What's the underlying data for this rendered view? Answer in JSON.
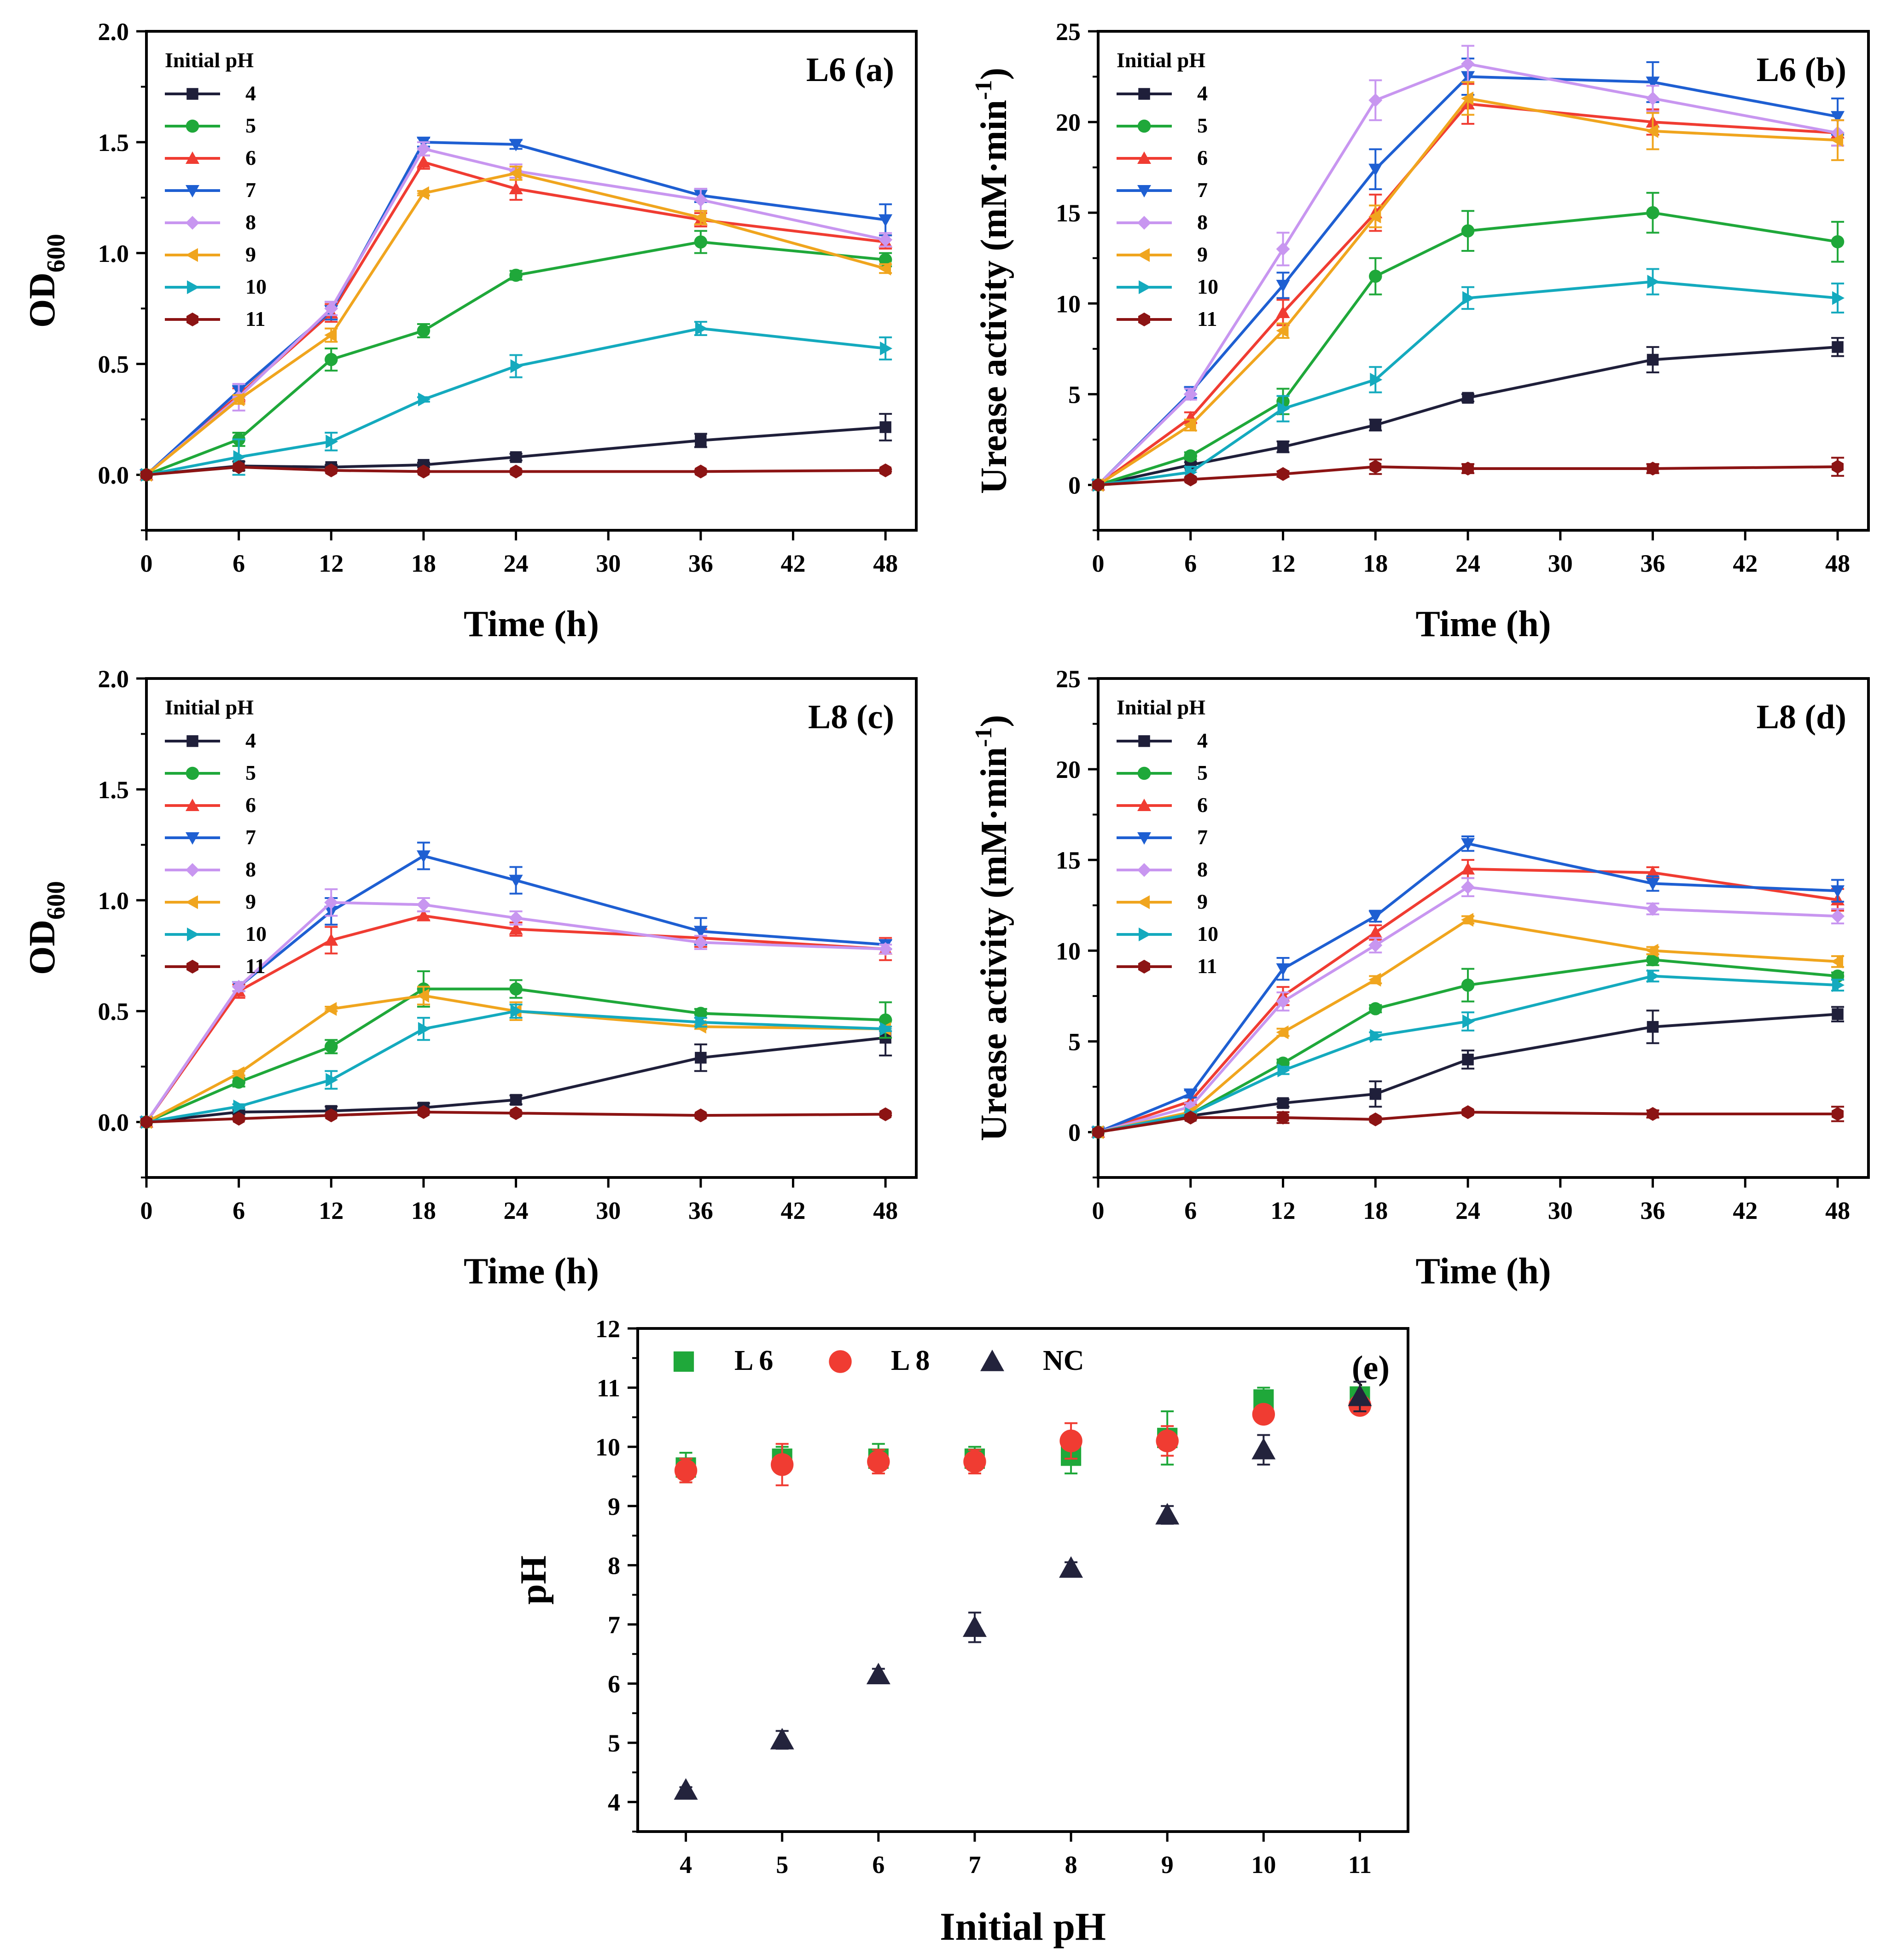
{
  "colors": {
    "4": "#1f1f3a",
    "5": "#1fa83a",
    "6": "#f03c32",
    "7": "#1e5fd2",
    "8": "#c896f0",
    "9": "#f0a51e",
    "10": "#14aabe",
    "11": "#8c1414",
    "L6": "#1fa83a",
    "L8": "#f03c32",
    "NC": "#23233c"
  },
  "chart_data": [
    {
      "id": "a",
      "type": "line",
      "panel_label": "L6  (a)",
      "xlabel": "Time (h)",
      "ylabel_main": "OD",
      "ylabel_sub": "600",
      "legend_title": "Initial pH",
      "x": [
        0,
        6,
        12,
        18,
        24,
        36,
        48
      ],
      "xlim": [
        0,
        50
      ],
      "xticks": [
        0,
        6,
        12,
        18,
        24,
        30,
        36,
        42,
        48
      ],
      "ylim": [
        -0.25,
        2.0
      ],
      "yticks": [
        "0.0",
        "0.5",
        "1.0",
        "1.5",
        "2.0"
      ],
      "series": [
        {
          "name": "4",
          "marker": "square",
          "values": [
            0,
            0.04,
            0.035,
            0.045,
            0.08,
            0.155,
            0.215
          ],
          "errors": [
            0,
            0.02,
            0.01,
            0.01,
            0.015,
            0.03,
            0.06
          ]
        },
        {
          "name": "5",
          "marker": "circle",
          "values": [
            0,
            0.16,
            0.52,
            0.65,
            0.9,
            1.05,
            0.97
          ],
          "errors": [
            0,
            0.03,
            0.05,
            0.03,
            0.02,
            0.05,
            0.03
          ]
        },
        {
          "name": "6",
          "marker": "triangle-up",
          "values": [
            0,
            0.36,
            0.73,
            1.41,
            1.29,
            1.15,
            1.05
          ],
          "errors": [
            0,
            0.03,
            0.04,
            0.03,
            0.05,
            0.03,
            0.03
          ]
        },
        {
          "name": "7",
          "marker": "triangle-down",
          "values": [
            0,
            0.38,
            0.74,
            1.5,
            1.49,
            1.26,
            1.15
          ],
          "errors": [
            0,
            0.02,
            0.04,
            0.02,
            0.02,
            0.03,
            0.07
          ]
        },
        {
          "name": "8",
          "marker": "diamond",
          "values": [
            0,
            0.35,
            0.75,
            1.47,
            1.37,
            1.24,
            1.06
          ],
          "errors": [
            0,
            0.06,
            0.03,
            0.03,
            0.03,
            0.05,
            0.03
          ]
        },
        {
          "name": "9",
          "marker": "triangle-left",
          "values": [
            0,
            0.34,
            0.63,
            1.27,
            1.36,
            1.16,
            0.93
          ],
          "errors": [
            0,
            0.02,
            0.03,
            0.01,
            0.03,
            0.03,
            0.02
          ]
        },
        {
          "name": "10",
          "marker": "triangle-right",
          "values": [
            0,
            0.08,
            0.15,
            0.34,
            0.49,
            0.66,
            0.57
          ],
          "errors": [
            0,
            0.08,
            0.04,
            0.01,
            0.05,
            0.03,
            0.05
          ]
        },
        {
          "name": "11",
          "marker": "hexagon",
          "values": [
            0,
            0.035,
            0.02,
            0.015,
            0.015,
            0.015,
            0.02
          ],
          "errors": [
            0,
            0.005,
            0.005,
            0.005,
            0.005,
            0.005,
            0.005
          ]
        }
      ]
    },
    {
      "id": "b",
      "type": "line",
      "panel_label": "L6  (b)",
      "xlabel": "Time (h)",
      "ylabel_main": "Urease activity (mM·min",
      "ylabel_sup": "-1",
      "ylabel_end": ")",
      "legend_title": "Initial pH",
      "x": [
        0,
        6,
        12,
        18,
        24,
        36,
        48
      ],
      "xlim": [
        0,
        50
      ],
      "xticks": [
        0,
        6,
        12,
        18,
        24,
        30,
        36,
        42,
        48
      ],
      "ylim": [
        -2.5,
        25
      ],
      "yticks": [
        "0",
        "5",
        "10",
        "15",
        "20",
        "25"
      ],
      "series": [
        {
          "name": "4",
          "marker": "square",
          "values": [
            0,
            1.1,
            2.1,
            3.3,
            4.8,
            6.9,
            7.6
          ],
          "errors": [
            0,
            0.15,
            0.3,
            0.3,
            0.2,
            0.7,
            0.5
          ]
        },
        {
          "name": "5",
          "marker": "circle",
          "values": [
            0,
            1.6,
            4.6,
            11.5,
            14.0,
            15.0,
            13.4
          ],
          "errors": [
            0,
            0.2,
            0.7,
            1.0,
            1.1,
            1.1,
            1.1
          ]
        },
        {
          "name": "6",
          "marker": "triangle-up",
          "values": [
            0,
            3.7,
            9.5,
            15.0,
            21.0,
            20.0,
            19.4
          ],
          "errors": [
            0,
            0.3,
            0.7,
            1.0,
            1.1,
            0.7,
            0.7
          ]
        },
        {
          "name": "7",
          "marker": "triangle-down",
          "values": [
            0,
            5.1,
            11.0,
            17.4,
            22.5,
            22.2,
            20.3
          ],
          "errors": [
            0,
            0.3,
            0.7,
            1.1,
            1.0,
            1.1,
            1.0
          ]
        },
        {
          "name": "8",
          "marker": "diamond",
          "values": [
            0,
            5.0,
            13.0,
            21.2,
            23.2,
            21.3,
            19.4
          ],
          "errors": [
            0,
            0.3,
            0.9,
            1.1,
            1.0,
            0.7,
            0.7
          ]
        },
        {
          "name": "9",
          "marker": "triangle-left",
          "values": [
            0,
            3.3,
            8.5,
            14.8,
            21.3,
            19.5,
            19.0
          ],
          "errors": [
            0,
            0.3,
            0.4,
            0.6,
            0.9,
            1.0,
            1.1
          ]
        },
        {
          "name": "10",
          "marker": "triangle-right",
          "values": [
            0,
            0.7,
            4.2,
            5.8,
            10.3,
            11.2,
            10.3
          ],
          "errors": [
            0,
            0.3,
            0.7,
            0.7,
            0.6,
            0.7,
            0.8
          ]
        },
        {
          "name": "11",
          "marker": "hexagon",
          "values": [
            0,
            0.3,
            0.6,
            1.0,
            0.9,
            0.9,
            1.0
          ],
          "errors": [
            0,
            0.1,
            0.15,
            0.4,
            0.25,
            0.25,
            0.5
          ]
        }
      ]
    },
    {
      "id": "c",
      "type": "line",
      "panel_label": "L8  (c)",
      "xlabel": "Time (h)",
      "ylabel_main": "OD",
      "ylabel_sub": "600",
      "legend_title": "Initial pH",
      "x": [
        0,
        6,
        12,
        18,
        24,
        36,
        48
      ],
      "xlim": [
        0,
        50
      ],
      "xticks": [
        0,
        6,
        12,
        18,
        24,
        30,
        36,
        42,
        48
      ],
      "ylim": [
        -0.25,
        2.0
      ],
      "yticks": [
        "0.0",
        "0.5",
        "1.0",
        "1.5",
        "2.0"
      ],
      "series": [
        {
          "name": "4",
          "marker": "square",
          "values": [
            0,
            0.045,
            0.05,
            0.065,
            0.1,
            0.29,
            0.38
          ],
          "errors": [
            0,
            0.01,
            0.02,
            0.02,
            0.02,
            0.06,
            0.08
          ]
        },
        {
          "name": "5",
          "marker": "circle",
          "values": [
            0,
            0.18,
            0.34,
            0.6,
            0.6,
            0.49,
            0.46
          ],
          "errors": [
            0,
            0.02,
            0.03,
            0.08,
            0.04,
            0.02,
            0.08
          ]
        },
        {
          "name": "6",
          "marker": "triangle-up",
          "values": [
            0,
            0.59,
            0.82,
            0.93,
            0.87,
            0.83,
            0.78
          ],
          "errors": [
            0,
            0.03,
            0.06,
            0.02,
            0.03,
            0.04,
            0.05
          ]
        },
        {
          "name": "7",
          "marker": "triangle-down",
          "values": [
            0,
            0.61,
            0.95,
            1.2,
            1.09,
            0.86,
            0.8
          ],
          "errors": [
            0,
            0.02,
            0.06,
            0.06,
            0.06,
            0.06,
            0.02
          ]
        },
        {
          "name": "8",
          "marker": "diamond",
          "values": [
            0,
            0.61,
            0.99,
            0.98,
            0.92,
            0.81,
            0.78
          ],
          "errors": [
            0,
            0.02,
            0.06,
            0.03,
            0.03,
            0.03,
            0.02
          ]
        },
        {
          "name": "9",
          "marker": "triangle-left",
          "values": [
            0,
            0.22,
            0.51,
            0.57,
            0.5,
            0.43,
            0.42
          ],
          "errors": [
            0,
            0.01,
            0.01,
            0.04,
            0.04,
            0.01,
            0.01
          ]
        },
        {
          "name": "10",
          "marker": "triangle-right",
          "values": [
            0,
            0.07,
            0.19,
            0.42,
            0.5,
            0.45,
            0.42
          ],
          "errors": [
            0,
            0.01,
            0.04,
            0.05,
            0.03,
            0.02,
            0.01
          ]
        },
        {
          "name": "11",
          "marker": "hexagon",
          "values": [
            0,
            0.015,
            0.03,
            0.045,
            0.04,
            0.03,
            0.035
          ],
          "errors": [
            0,
            0.005,
            0.005,
            0.005,
            0.005,
            0.005,
            0.005
          ]
        }
      ]
    },
    {
      "id": "d",
      "type": "line",
      "panel_label": "L8  (d)",
      "xlabel": "Time (h)",
      "ylabel_main": "Urease activity (mM·min",
      "ylabel_sup": "-1",
      "ylabel_end": ")",
      "legend_title": "Initial pH",
      "x": [
        0,
        6,
        12,
        18,
        24,
        36,
        48
      ],
      "xlim": [
        0,
        50
      ],
      "xticks": [
        0,
        6,
        12,
        18,
        24,
        30,
        36,
        42,
        48
      ],
      "ylim": [
        -2.5,
        25
      ],
      "yticks": [
        "0",
        "5",
        "10",
        "15",
        "20",
        "25"
      ],
      "series": [
        {
          "name": "4",
          "marker": "square",
          "values": [
            0,
            0.9,
            1.6,
            2.1,
            4.0,
            5.8,
            6.5
          ],
          "errors": [
            0,
            0.1,
            0.2,
            0.7,
            0.5,
            0.9,
            0.4
          ]
        },
        {
          "name": "5",
          "marker": "circle",
          "values": [
            0,
            1.0,
            3.8,
            6.8,
            8.1,
            9.5,
            8.6
          ],
          "errors": [
            0,
            0.1,
            0.2,
            0.2,
            0.9,
            0.3,
            0.2
          ]
        },
        {
          "name": "6",
          "marker": "triangle-up",
          "values": [
            0,
            1.7,
            7.5,
            11.0,
            14.5,
            14.3,
            12.8
          ],
          "errors": [
            0,
            0.2,
            0.5,
            0.4,
            0.5,
            0.3,
            0.6
          ]
        },
        {
          "name": "7",
          "marker": "triangle-down",
          "values": [
            0,
            2.1,
            9.0,
            11.9,
            15.9,
            13.7,
            13.3
          ],
          "errors": [
            0,
            0.2,
            0.6,
            0.3,
            0.4,
            0.4,
            0.6
          ]
        },
        {
          "name": "8",
          "marker": "diamond",
          "values": [
            0,
            1.4,
            7.2,
            10.3,
            13.5,
            12.3,
            11.9
          ],
          "errors": [
            0,
            0.2,
            0.5,
            0.4,
            0.5,
            0.3,
            0.4
          ]
        },
        {
          "name": "9",
          "marker": "triangle-left",
          "values": [
            0,
            1.1,
            5.5,
            8.4,
            11.7,
            10.0,
            9.4
          ],
          "errors": [
            0,
            0.1,
            0.2,
            0.2,
            0.2,
            0.2,
            0.3
          ]
        },
        {
          "name": "10",
          "marker": "triangle-right",
          "values": [
            0,
            1.0,
            3.4,
            5.3,
            6.1,
            8.6,
            8.1
          ],
          "errors": [
            0,
            0.1,
            0.2,
            0.2,
            0.5,
            0.3,
            0.3
          ]
        },
        {
          "name": "11",
          "marker": "hexagon",
          "values": [
            0,
            0.8,
            0.8,
            0.7,
            1.1,
            1.0,
            1.0
          ],
          "errors": [
            0,
            0.1,
            0.3,
            0.1,
            0.1,
            0.2,
            0.4
          ]
        }
      ]
    },
    {
      "id": "e",
      "type": "scatter",
      "panel_label": "(e)",
      "xlabel": "Initial pH",
      "ylabel": "pH",
      "x": [
        4,
        5,
        6,
        7,
        8,
        9,
        10,
        11
      ],
      "xlim": [
        3.5,
        11.5
      ],
      "xticks": [
        "4",
        "5",
        "6",
        "7",
        "8",
        "9",
        "10",
        "11"
      ],
      "ylim": [
        3.5,
        12
      ],
      "yticks": [
        "4",
        "5",
        "6",
        "7",
        "8",
        "9",
        "10",
        "11",
        "12"
      ],
      "legend": [
        "L 6",
        "L 8",
        "NC"
      ],
      "series": [
        {
          "name": "L 6",
          "key": "L6",
          "marker": "square",
          "values": [
            9.65,
            9.8,
            9.8,
            9.8,
            9.85,
            10.15,
            10.8,
            10.85
          ],
          "errors": [
            0.25,
            0.2,
            0.25,
            0.2,
            0.3,
            0.45,
            0.2,
            0.15
          ]
        },
        {
          "name": "L 8",
          "key": "L8",
          "marker": "circle",
          "values": [
            9.6,
            9.7,
            9.75,
            9.75,
            10.1,
            10.1,
            10.55,
            10.7
          ],
          "errors": [
            0.2,
            0.35,
            0.2,
            0.2,
            0.3,
            0.25,
            0.1,
            0.1
          ]
        },
        {
          "name": "NC",
          "key": "NC",
          "marker": "triangle-up",
          "values": [
            4.2,
            5.05,
            6.15,
            6.95,
            7.95,
            8.85,
            9.95,
            10.85
          ],
          "errors": [
            0.05,
            0.15,
            0.1,
            0.25,
            0.1,
            0.15,
            0.25,
            0.25
          ]
        }
      ]
    }
  ]
}
